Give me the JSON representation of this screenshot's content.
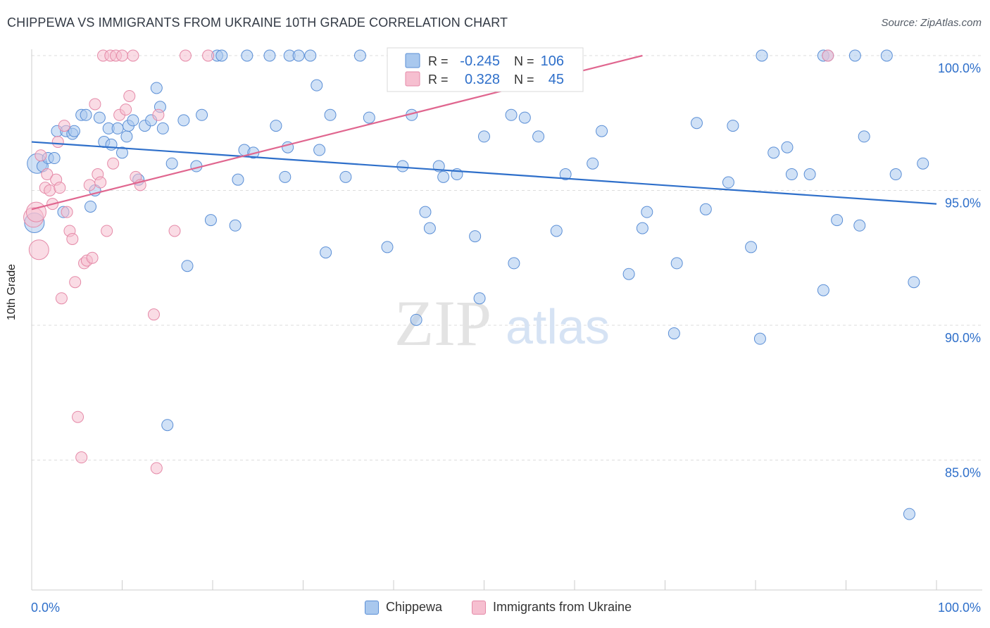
{
  "title": "CHIPPEWA VS IMMIGRANTS FROM UKRAINE 10TH GRADE CORRELATION CHART",
  "source": "Source: ZipAtlas.com",
  "watermark": {
    "zip": "ZIP",
    "atlas": "atlas"
  },
  "colors": {
    "blue_fill": "#a9c8ee",
    "blue_stroke": "#5b8fd6",
    "blue_line": "#2e6fca",
    "pink_fill": "#f6bfd0",
    "pink_stroke": "#e58aa8",
    "pink_line": "#e0668f",
    "axis_text": "#2e6fca",
    "grid": "#dddddd"
  },
  "legend": {
    "r_label": "R =",
    "n_label": "N =",
    "items": [
      {
        "name": "Chippewa",
        "r": "-0.245",
        "n": "106",
        "color": "#a9c8ee"
      },
      {
        "name": "Immigrants from Ukraine",
        "r": "0.328",
        "n": "45",
        "color": "#f6bfd0"
      }
    ]
  },
  "chart_data": {
    "type": "scatter",
    "title": "CHIPPEWA VS IMMIGRANTS FROM UKRAINE 10TH GRADE CORRELATION CHART",
    "xlabel": "",
    "ylabel": "10th Grade",
    "xlim": [
      0,
      100
    ],
    "ylim": [
      80.5,
      100.5
    ],
    "x_ticks": [
      "0.0%",
      "100.0%"
    ],
    "y_ticks": [
      {
        "value": 100,
        "label": "100.0%"
      },
      {
        "value": 95,
        "label": "95.0%"
      },
      {
        "value": 90,
        "label": "90.0%"
      },
      {
        "value": 85,
        "label": "85.0%"
      }
    ],
    "grid": true,
    "legend_position": "top-center",
    "series": [
      {
        "name": "Chippewa",
        "trend": {
          "x": [
            0,
            100
          ],
          "y": [
            96.8,
            94.5
          ]
        },
        "points": [
          [
            0.3,
            93.8
          ],
          [
            0.6,
            96.0
          ],
          [
            1.2,
            95.9
          ],
          [
            1.8,
            96.2
          ],
          [
            2.5,
            96.2
          ],
          [
            2.8,
            97.2
          ],
          [
            3.5,
            94.2
          ],
          [
            3.8,
            97.2
          ],
          [
            4.5,
            97.1
          ],
          [
            4.7,
            97.2
          ],
          [
            5.5,
            97.8
          ],
          [
            6.0,
            97.8
          ],
          [
            6.5,
            94.4
          ],
          [
            7.0,
            95.0
          ],
          [
            7.5,
            97.7
          ],
          [
            8.0,
            96.8
          ],
          [
            8.5,
            97.3
          ],
          [
            8.8,
            96.7
          ],
          [
            9.5,
            97.3
          ],
          [
            10.0,
            96.4
          ],
          [
            10.5,
            97.0
          ],
          [
            10.7,
            97.4
          ],
          [
            11.2,
            97.6
          ],
          [
            11.8,
            95.4
          ],
          [
            12.5,
            97.4
          ],
          [
            13.2,
            97.6
          ],
          [
            13.8,
            98.8
          ],
          [
            14.2,
            98.1
          ],
          [
            14.5,
            97.3
          ],
          [
            15.0,
            86.3
          ],
          [
            15.5,
            96.0
          ],
          [
            16.8,
            97.6
          ],
          [
            17.2,
            92.2
          ],
          [
            18.2,
            95.9
          ],
          [
            18.8,
            97.8
          ],
          [
            19.8,
            93.9
          ],
          [
            20.5,
            100.0
          ],
          [
            21.0,
            100.0
          ],
          [
            22.5,
            93.7
          ],
          [
            22.8,
            95.4
          ],
          [
            23.5,
            96.5
          ],
          [
            23.8,
            100.0
          ],
          [
            24.5,
            96.4
          ],
          [
            26.3,
            100.0
          ],
          [
            27.0,
            97.4
          ],
          [
            28.0,
            95.5
          ],
          [
            28.3,
            96.6
          ],
          [
            28.5,
            100.0
          ],
          [
            29.5,
            100.0
          ],
          [
            30.8,
            100.0
          ],
          [
            31.5,
            98.9
          ],
          [
            31.8,
            96.5
          ],
          [
            32.5,
            92.7
          ],
          [
            33.0,
            97.8
          ],
          [
            34.7,
            95.5
          ],
          [
            36.3,
            100.0
          ],
          [
            37.3,
            97.7
          ],
          [
            39.3,
            92.9
          ],
          [
            41.0,
            95.9
          ],
          [
            42.0,
            97.8
          ],
          [
            42.5,
            90.2
          ],
          [
            43.5,
            94.2
          ],
          [
            44.0,
            93.6
          ],
          [
            45.0,
            95.9
          ],
          [
            45.5,
            95.5
          ],
          [
            47.0,
            95.6
          ],
          [
            49.0,
            93.3
          ],
          [
            49.5,
            91.0
          ],
          [
            50.0,
            97.0
          ],
          [
            53.0,
            97.8
          ],
          [
            53.3,
            92.3
          ],
          [
            54.0,
            99.3
          ],
          [
            54.5,
            97.7
          ],
          [
            56.0,
            97.0
          ],
          [
            58.0,
            93.5
          ],
          [
            59.0,
            95.6
          ],
          [
            62.0,
            96.0
          ],
          [
            63.0,
            97.2
          ],
          [
            66.0,
            91.9
          ],
          [
            67.5,
            93.6
          ],
          [
            68.0,
            94.2
          ],
          [
            71.0,
            89.7
          ],
          [
            71.3,
            92.3
          ],
          [
            73.5,
            97.5
          ],
          [
            74.5,
            94.3
          ],
          [
            77.0,
            95.3
          ],
          [
            77.5,
            97.4
          ],
          [
            79.5,
            92.9
          ],
          [
            80.5,
            89.5
          ],
          [
            80.7,
            100.0
          ],
          [
            82.0,
            96.4
          ],
          [
            83.5,
            96.6
          ],
          [
            84.0,
            95.6
          ],
          [
            86.0,
            95.6
          ],
          [
            87.5,
            100.0
          ],
          [
            87.5,
            91.3
          ],
          [
            88.0,
            100.0
          ],
          [
            89.0,
            93.9
          ],
          [
            91.0,
            100.0
          ],
          [
            91.5,
            93.7
          ],
          [
            92.0,
            97.0
          ],
          [
            94.5,
            100.0
          ],
          [
            95.5,
            95.6
          ],
          [
            97.0,
            83.0
          ],
          [
            97.5,
            91.6
          ],
          [
            98.5,
            96.0
          ]
        ]
      },
      {
        "name": "Immigrants from Ukraine",
        "trend": {
          "x": [
            0,
            67.5
          ],
          "y": [
            94.3,
            100.0
          ]
        },
        "points": [
          [
            0.2,
            94.0
          ],
          [
            0.5,
            94.2
          ],
          [
            0.8,
            92.8
          ],
          [
            1.0,
            96.3
          ],
          [
            1.5,
            95.1
          ],
          [
            1.7,
            95.6
          ],
          [
            2.0,
            95.0
          ],
          [
            2.3,
            94.5
          ],
          [
            2.7,
            95.4
          ],
          [
            2.9,
            96.8
          ],
          [
            3.1,
            95.1
          ],
          [
            3.3,
            91.0
          ],
          [
            3.6,
            97.4
          ],
          [
            3.9,
            94.2
          ],
          [
            4.2,
            93.5
          ],
          [
            4.5,
            93.2
          ],
          [
            4.8,
            91.6
          ],
          [
            5.1,
            86.6
          ],
          [
            5.5,
            85.1
          ],
          [
            5.8,
            92.3
          ],
          [
            6.1,
            92.4
          ],
          [
            6.4,
            95.2
          ],
          [
            6.7,
            92.5
          ],
          [
            7.0,
            98.2
          ],
          [
            7.3,
            95.6
          ],
          [
            7.6,
            95.3
          ],
          [
            7.9,
            100.0
          ],
          [
            8.3,
            93.5
          ],
          [
            8.7,
            100.0
          ],
          [
            9.0,
            96.0
          ],
          [
            9.3,
            100.0
          ],
          [
            9.7,
            97.8
          ],
          [
            10.0,
            100.0
          ],
          [
            10.4,
            98.0
          ],
          [
            10.8,
            98.5
          ],
          [
            11.2,
            100.0
          ],
          [
            11.5,
            95.5
          ],
          [
            12.0,
            95.2
          ],
          [
            13.5,
            90.4
          ],
          [
            13.8,
            84.7
          ],
          [
            14.0,
            97.8
          ],
          [
            15.8,
            93.5
          ],
          [
            17.0,
            100.0
          ],
          [
            19.5,
            100.0
          ],
          [
            88.0,
            100.0
          ]
        ]
      }
    ]
  }
}
